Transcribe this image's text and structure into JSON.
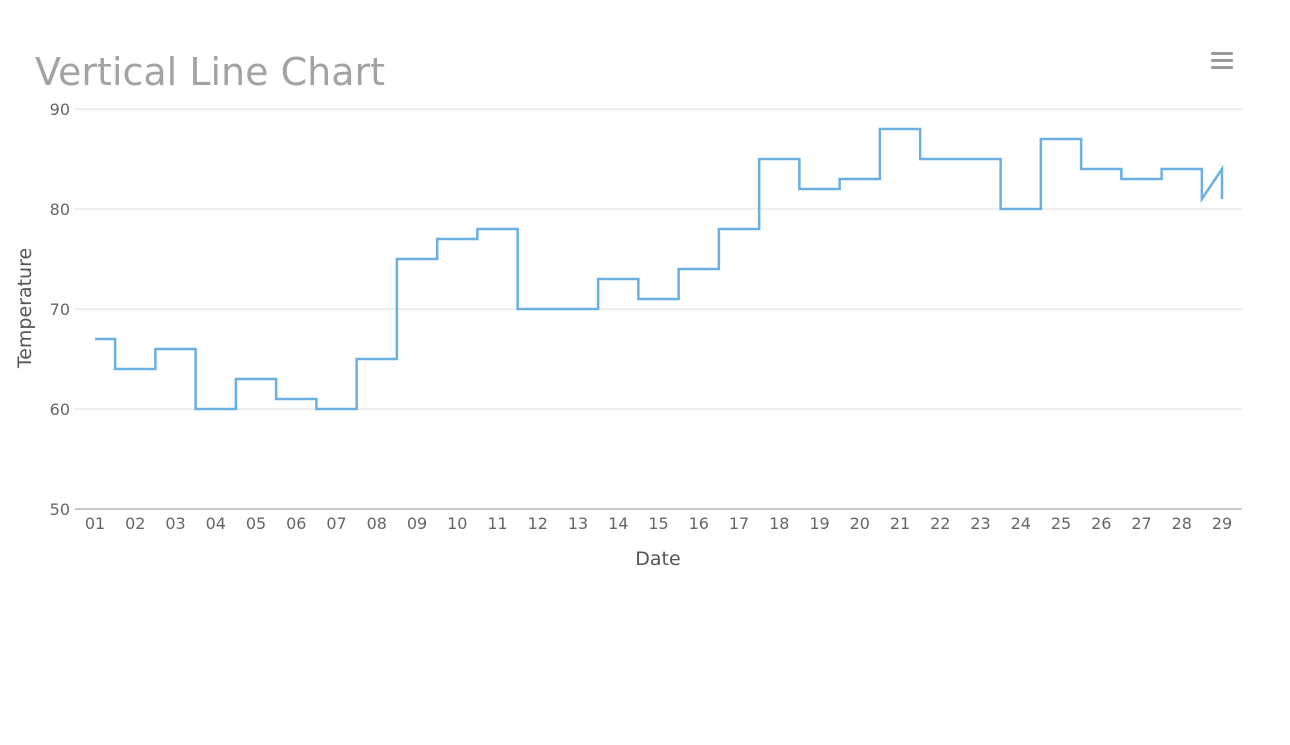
{
  "chart_data": {
    "type": "line",
    "step": "center",
    "title": "Vertical Line Chart",
    "xlabel": "Date",
    "ylabel": "Temperature",
    "ylim": [
      50,
      90
    ],
    "yticks": [
      "50",
      "60",
      "70",
      "80",
      "90"
    ],
    "grid": true,
    "legend": "none",
    "color": "#6ab0e3",
    "categories": [
      "01",
      "02",
      "03",
      "04",
      "05",
      "06",
      "07",
      "08",
      "09",
      "10",
      "11",
      "12",
      "13",
      "14",
      "15",
      "16",
      "17",
      "18",
      "19",
      "20",
      "21",
      "22",
      "23",
      "24",
      "25",
      "26",
      "27",
      "28",
      "29"
    ],
    "values": [
      67,
      64,
      66,
      60,
      63,
      61,
      60,
      65,
      75,
      77,
      78,
      70,
      70,
      73,
      71,
      74,
      78,
      85,
      82,
      83,
      88,
      85,
      85,
      80,
      87,
      84,
      83,
      84,
      81
    ]
  },
  "toolbar": {
    "menu_icon": "hamburger-menu-icon"
  }
}
